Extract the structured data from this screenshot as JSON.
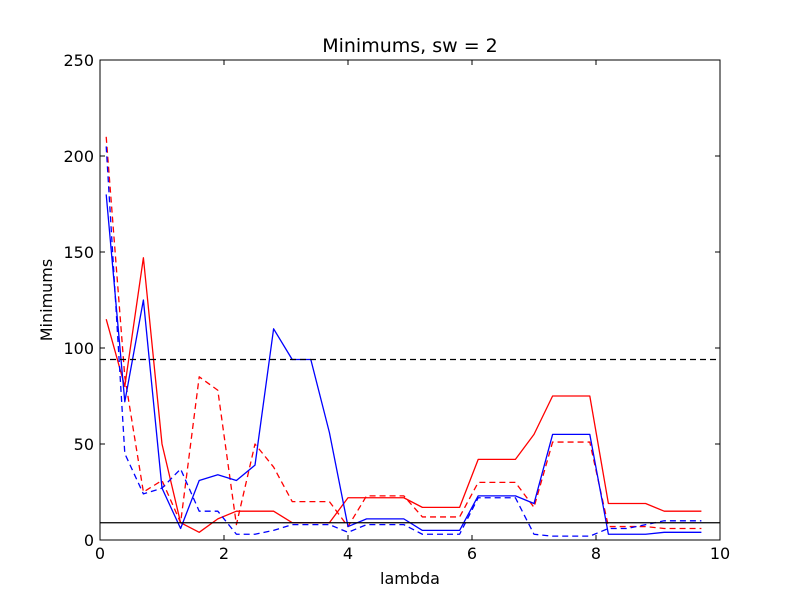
{
  "chart_data": {
    "type": "line",
    "title": "Minimums, sw = 2",
    "xlabel": "lambda",
    "ylabel": "Minimums",
    "xlim": [
      0,
      10
    ],
    "ylim": [
      0,
      250
    ],
    "xticks": [
      "0",
      "2",
      "4",
      "6",
      "8",
      "10"
    ],
    "yticks": [
      "0",
      "50",
      "100",
      "150",
      "200",
      "250"
    ],
    "grid": false,
    "series": [
      {
        "name": "red solid",
        "color": "#ff0000",
        "style": "solid",
        "x": [
          0.1,
          0.4,
          0.7,
          1.0,
          1.3,
          1.6,
          1.9,
          2.2,
          2.5,
          2.8,
          3.1,
          3.4,
          3.7,
          4.0,
          4.3,
          4.6,
          4.9,
          5.2,
          5.5,
          5.8,
          6.1,
          6.4,
          6.7,
          7.0,
          7.3,
          7.6,
          7.9,
          8.2,
          8.5,
          8.8,
          9.1,
          9.4,
          9.7
        ],
        "y": [
          115,
          80,
          147,
          50,
          9,
          4,
          11,
          15,
          15,
          15,
          9,
          9,
          9,
          22,
          22,
          22,
          22,
          17,
          17,
          17,
          42,
          42,
          42,
          55,
          75,
          75,
          75,
          19,
          19,
          19,
          15,
          15,
          15
        ]
      },
      {
        "name": "red dashed",
        "color": "#ff0000",
        "style": "dashed",
        "x": [
          0.1,
          0.4,
          0.7,
          1.0,
          1.3,
          1.6,
          1.9,
          2.2,
          2.5,
          2.8,
          3.1,
          3.4,
          3.7,
          4.0,
          4.3,
          4.6,
          4.9,
          5.2,
          5.5,
          5.8,
          6.1,
          6.4,
          6.7,
          7.0,
          7.3,
          7.6,
          7.9,
          8.2,
          8.5,
          8.8,
          9.1,
          9.4,
          9.7
        ],
        "y": [
          210,
          85,
          25,
          31,
          9,
          85,
          78,
          8,
          50,
          38,
          20,
          20,
          20,
          7,
          23,
          23,
          23,
          12,
          12,
          12,
          30,
          30,
          30,
          17,
          51,
          51,
          51,
          7,
          7,
          7,
          6,
          6,
          6
        ]
      },
      {
        "name": "blue solid",
        "color": "#0000ff",
        "style": "solid",
        "x": [
          0.1,
          0.4,
          0.7,
          1.0,
          1.3,
          1.6,
          1.9,
          2.2,
          2.5,
          2.8,
          3.1,
          3.4,
          3.7,
          4.0,
          4.3,
          4.6,
          4.9,
          5.2,
          5.5,
          5.8,
          6.1,
          6.4,
          6.7,
          7.0,
          7.3,
          7.6,
          7.9,
          8.2,
          8.5,
          8.8,
          9.1,
          9.4,
          9.7
        ],
        "y": [
          180,
          72,
          125,
          27,
          6,
          31,
          34,
          31,
          39,
          110,
          94,
          94,
          56,
          7,
          11,
          11,
          11,
          5,
          5,
          5,
          23,
          23,
          23,
          19,
          55,
          55,
          55,
          3,
          3,
          3,
          4,
          4,
          4
        ]
      },
      {
        "name": "blue dashed",
        "color": "#0000ff",
        "style": "dashed",
        "x": [
          0.1,
          0.4,
          0.7,
          1.0,
          1.3,
          1.6,
          1.9,
          2.2,
          2.5,
          2.8,
          3.1,
          3.4,
          3.7,
          4.0,
          4.3,
          4.6,
          4.9,
          5.2,
          5.5,
          5.8,
          6.1,
          6.4,
          6.7,
          7.0,
          7.3,
          7.6,
          7.9,
          8.2,
          8.5,
          8.8,
          9.1,
          9.4,
          9.7
        ],
        "y": [
          205,
          45,
          24,
          27,
          37,
          15,
          15,
          3,
          3,
          5,
          8,
          8,
          8,
          4,
          8,
          8,
          8,
          3,
          3,
          3,
          22,
          22,
          22,
          3,
          2,
          2,
          2,
          6,
          6,
          8,
          10,
          10,
          10
        ]
      }
    ],
    "reference_lines": [
      {
        "name": "dashed threshold",
        "y": 94,
        "color": "#000000",
        "style": "dashed"
      },
      {
        "name": "solid threshold",
        "y": 9,
        "color": "#000000",
        "style": "solid"
      }
    ]
  }
}
